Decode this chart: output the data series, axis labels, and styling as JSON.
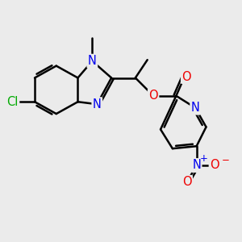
{
  "background_color": "#ebebeb",
  "bond_color": "#000000",
  "bond_width": 1.8,
  "atom_colors": {
    "N": "#0000ee",
    "O": "#ee0000",
    "Cl": "#00aa00",
    "C": "#000000"
  },
  "font_size_atom": 10.5,
  "font_size_charge": 8.5,
  "figsize": [
    3.0,
    3.0
  ],
  "dpi": 100,
  "xlim": [
    0,
    10
  ],
  "ylim": [
    0,
    10
  ]
}
